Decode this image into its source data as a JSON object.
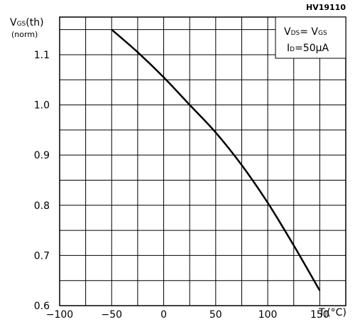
{
  "chart_data": {
    "type": "line",
    "reference": "HV19110",
    "ylabel_main": "V",
    "ylabel_sub": "GS",
    "ylabel_rest": "(th)",
    "ylabel_line2": "(norm)",
    "xlabel_main": "T",
    "xlabel_sub": "J",
    "xlabel_rest": "(°C)",
    "conditions": {
      "line1_main": "V",
      "line1_sub": "DS",
      "line1_mid": "= V",
      "line1_sub2": "GS",
      "line2_main": "I",
      "line2_sub": "D",
      "line2_rest": "=50µA"
    },
    "xlim": [
      -100,
      175
    ],
    "ylim": [
      0.6,
      1.175
    ],
    "x_ticks": [
      -100,
      -50,
      0,
      50,
      100,
      150
    ],
    "x_tick_labels": [
      "−100",
      "−50",
      "0",
      "50",
      "100",
      "150"
    ],
    "y_ticks": [
      0.6,
      0.7,
      0.8,
      0.9,
      1.0,
      1.1
    ],
    "y_tick_labels": [
      "0.6",
      "0.7",
      "0.8",
      "0.9",
      "1.0",
      "1.1"
    ],
    "grid": true,
    "series": [
      {
        "x": [
          -50,
          -25,
          0,
          25,
          50,
          75,
          100,
          125,
          150
        ],
        "y": [
          1.15,
          1.105,
          1.055,
          1.0,
          0.945,
          0.88,
          0.805,
          0.72,
          0.63
        ]
      }
    ]
  }
}
